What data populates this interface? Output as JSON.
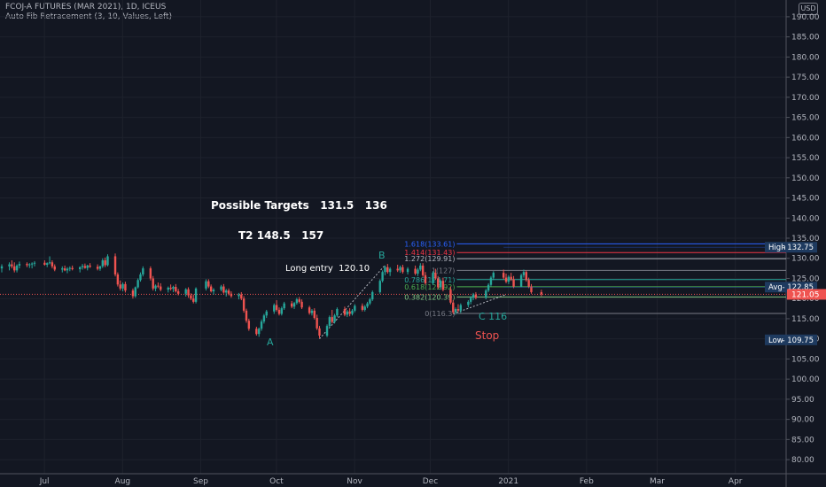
{
  "header": {
    "symbol_line": "FCOJ-A FUTURES (MAR 2021), 1D, ICEUS",
    "indicator_line": "Auto Fib Retracement (3, 10, Values, Left)",
    "currency": "USD"
  },
  "annotations": {
    "targets": "Possible Targets   131.5   136",
    "t2": "T2 148.5   157",
    "long_entry": "Long entry  120.10",
    "label_a": "A",
    "label_b": "B",
    "label_c": "C 116",
    "stop": "Stop"
  },
  "colors": {
    "background": "#131722",
    "up": "#26a69a",
    "down": "#ef5350",
    "axis_text": "#b2b5be",
    "grid": "#1e222d",
    "annotation_teal": "#26a69a",
    "annotation_red": "#ef5350"
  },
  "chart_data": {
    "type": "candlestick",
    "title": "FCOJ-A FUTURES (MAR 2021), 1D, ICEUS",
    "x_tick_labels": [
      "Jul",
      "Aug",
      "Sep",
      "Oct",
      "Nov",
      "Dec",
      "2021",
      "Feb",
      "Mar",
      "Apr"
    ],
    "x_range": [
      "2020-06-19",
      "2021-04-25"
    ],
    "y_ticks": [
      80,
      85,
      90,
      95,
      100,
      105,
      110,
      115,
      120,
      125,
      130,
      135,
      140,
      145,
      150,
      155,
      160,
      165,
      170,
      175,
      180,
      185,
      190
    ],
    "y_tick_labels": [
      "80.00",
      "85.00",
      "90.00",
      "95.00",
      "100.00",
      "105.00",
      "110.00",
      "115.00",
      "120.00",
      "125.00",
      "130.00",
      "135.00",
      "140.00",
      "145.00",
      "150.00",
      "155.00",
      "160.00",
      "165.00",
      "170.00",
      "175.00",
      "180.00",
      "185.00",
      "190.00"
    ],
    "ylim": [
      76.5,
      193.5
    ],
    "grid": true,
    "price_labels": [
      {
        "text": "High",
        "value_text": "132.75",
        "value": 132.75
      },
      {
        "text": "Avg",
        "value_text": "122.85",
        "value": 122.85
      },
      {
        "text": "",
        "value_text": "121.05",
        "value": 121.05,
        "kind": "last"
      },
      {
        "text": "Low",
        "value_text": "109.75",
        "value": 109.75
      }
    ],
    "fib_levels": [
      {
        "label": "1.618(133.61)",
        "value": 133.61,
        "color": "#2962ff"
      },
      {
        "label": "1.414(131.43)",
        "value": 131.43,
        "color": "#f23645"
      },
      {
        "label": "1.272(129.91)",
        "value": 129.91,
        "color": "#b2b5be"
      },
      {
        "label": "1(127)",
        "value": 127.0,
        "color": "#787b86"
      },
      {
        "label": "0.786(124.71)",
        "value": 124.71,
        "color": "#26a69a"
      },
      {
        "label": "0.618(122.92)",
        "value": 122.92,
        "color": "#4caf50"
      },
      {
        "label": "0.382(120.39)",
        "value": 120.39,
        "color": "#81c784"
      },
      {
        "label": "0(116.3)",
        "value": 116.3,
        "color": "#787b86"
      }
    ],
    "ohlc": [
      [
        "2020-06-19",
        127.5,
        128.5,
        126.5,
        128.0
      ],
      [
        "2020-06-22",
        128.0,
        129.0,
        127.0,
        128.5
      ],
      [
        "2020-06-23",
        128.5,
        129.5,
        127.5,
        128.0
      ],
      [
        "2020-06-24",
        128.0,
        129.0,
        126.5,
        127.0
      ],
      [
        "2020-06-25",
        127.0,
        128.5,
        126.5,
        128.2
      ],
      [
        "2020-06-26",
        128.2,
        129.2,
        127.5,
        128.6
      ],
      [
        "2020-06-29",
        128.6,
        129.0,
        127.8,
        128.3
      ],
      [
        "2020-06-30",
        128.3,
        128.8,
        127.6,
        128.5
      ],
      [
        "2020-07-01",
        128.5,
        129.0,
        127.5,
        128.7
      ],
      [
        "2020-07-02",
        128.7,
        129.3,
        128.0,
        128.9
      ],
      [
        "2020-07-06",
        128.9,
        129.5,
        128.2,
        128.4
      ],
      [
        "2020-07-07",
        128.4,
        129.0,
        127.8,
        128.8
      ],
      [
        "2020-07-08",
        128.8,
        130.5,
        128.5,
        129.0
      ],
      [
        "2020-07-09",
        129.0,
        129.5,
        127.5,
        128.0
      ],
      [
        "2020-07-10",
        128.0,
        128.5,
        126.8,
        127.2
      ],
      [
        "2020-07-13",
        127.2,
        128.0,
        126.5,
        127.5
      ],
      [
        "2020-07-14",
        127.5,
        128.2,
        126.8,
        127.0
      ],
      [
        "2020-07-15",
        127.0,
        127.8,
        126.3,
        127.4
      ],
      [
        "2020-07-16",
        127.4,
        128.0,
        126.8,
        127.6
      ],
      [
        "2020-07-17",
        127.6,
        128.2,
        127.0,
        127.3
      ],
      [
        "2020-07-20",
        127.3,
        128.0,
        126.5,
        127.8
      ],
      [
        "2020-07-21",
        127.8,
        128.6,
        127.2,
        128.1
      ],
      [
        "2020-07-22",
        128.1,
        128.7,
        127.4,
        127.6
      ],
      [
        "2020-07-23",
        127.6,
        128.4,
        127.0,
        128.2
      ],
      [
        "2020-07-24",
        128.2,
        128.8,
        127.6,
        127.9
      ],
      [
        "2020-07-27",
        127.9,
        128.5,
        127.0,
        127.4
      ],
      [
        "2020-07-28",
        127.4,
        128.2,
        126.9,
        128.0
      ],
      [
        "2020-07-29",
        128.0,
        130.0,
        127.6,
        129.5
      ],
      [
        "2020-07-30",
        129.5,
        130.2,
        127.8,
        128.3
      ],
      [
        "2020-07-31",
        128.3,
        131.0,
        128.0,
        130.5
      ],
      [
        "2020-08-03",
        130.5,
        131.2,
        125.5,
        126.0
      ],
      [
        "2020-08-04",
        126.0,
        126.5,
        123.0,
        123.5
      ],
      [
        "2020-08-05",
        123.5,
        124.5,
        122.0,
        122.5
      ],
      [
        "2020-08-06",
        122.5,
        124.0,
        121.8,
        123.6
      ],
      [
        "2020-08-07",
        123.6,
        124.2,
        121.5,
        122.0
      ],
      [
        "2020-08-10",
        122.0,
        122.5,
        120.0,
        120.6
      ],
      [
        "2020-08-11",
        120.6,
        123.0,
        120.2,
        122.8
      ],
      [
        "2020-08-12",
        122.8,
        125.0,
        122.5,
        124.6
      ],
      [
        "2020-08-13",
        124.6,
        126.5,
        124.2,
        126.0
      ],
      [
        "2020-08-14",
        126.0,
        128.0,
        125.5,
        127.5
      ],
      [
        "2020-08-17",
        127.5,
        128.0,
        124.5,
        125.0
      ],
      [
        "2020-08-18",
        125.0,
        125.6,
        122.0,
        122.5
      ],
      [
        "2020-08-19",
        122.5,
        123.5,
        121.8,
        123.2
      ],
      [
        "2020-08-20",
        123.2,
        124.0,
        122.6,
        123.0
      ],
      [
        "2020-08-21",
        123.0,
        123.8,
        121.8,
        122.2
      ],
      [
        "2020-08-24",
        122.2,
        123.0,
        121.5,
        122.7
      ],
      [
        "2020-08-25",
        122.7,
        123.5,
        122.0,
        122.4
      ],
      [
        "2020-08-26",
        122.4,
        123.2,
        121.6,
        122.9
      ],
      [
        "2020-08-27",
        122.9,
        123.6,
        121.5,
        121.8
      ],
      [
        "2020-08-28",
        121.8,
        122.4,
        120.8,
        121.2
      ],
      [
        "2020-08-31",
        121.2,
        122.6,
        120.5,
        122.3
      ],
      [
        "2020-09-01",
        122.3,
        122.8,
        120.2,
        120.8
      ],
      [
        "2020-09-02",
        120.8,
        121.3,
        119.6,
        120.0
      ],
      [
        "2020-09-03",
        120.0,
        121.0,
        118.8,
        119.2
      ],
      [
        "2020-09-04",
        119.2,
        122.8,
        118.8,
        122.5
      ],
      [
        "2020-09-08",
        122.5,
        124.8,
        122.0,
        124.3
      ],
      [
        "2020-09-09",
        124.3,
        124.8,
        122.6,
        123.0
      ],
      [
        "2020-09-10",
        123.0,
        123.5,
        121.5,
        121.8
      ],
      [
        "2020-09-11",
        121.8,
        122.6,
        121.0,
        122.2
      ],
      [
        "2020-09-14",
        122.2,
        123.4,
        121.8,
        123.0
      ],
      [
        "2020-09-15",
        123.0,
        123.6,
        121.2,
        121.5
      ],
      [
        "2020-09-16",
        121.5,
        122.4,
        120.5,
        122.0
      ],
      [
        "2020-09-17",
        122.0,
        122.5,
        120.8,
        121.2
      ],
      [
        "2020-09-18",
        121.2,
        121.8,
        120.2,
        120.6
      ],
      [
        "2020-09-21",
        120.6,
        121.4,
        119.8,
        121.0
      ],
      [
        "2020-09-22",
        121.0,
        121.6,
        119.6,
        120.0
      ],
      [
        "2020-09-23",
        120.0,
        120.6,
        116.5,
        117.0
      ],
      [
        "2020-09-24",
        117.0,
        117.5,
        114.0,
        114.5
      ],
      [
        "2020-09-25",
        114.5,
        115.0,
        112.0,
        112.5
      ],
      [
        "2020-09-28",
        112.5,
        113.0,
        110.8,
        111.2
      ],
      [
        "2020-09-29",
        111.2,
        112.8,
        110.5,
        112.5
      ],
      [
        "2020-09-30",
        112.5,
        114.8,
        112.0,
        114.3
      ],
      [
        "2020-10-01",
        114.3,
        116.2,
        113.8,
        115.8
      ],
      [
        "2020-10-02",
        115.8,
        117.2,
        115.2,
        116.8
      ],
      [
        "2020-10-05",
        116.8,
        118.8,
        116.2,
        118.4
      ],
      [
        "2020-10-06",
        118.4,
        119.6,
        116.8,
        117.2
      ],
      [
        "2020-10-07",
        117.2,
        117.8,
        115.8,
        116.2
      ],
      [
        "2020-10-08",
        116.2,
        118.0,
        115.8,
        117.6
      ],
      [
        "2020-10-09",
        117.6,
        119.2,
        117.2,
        118.8
      ],
      [
        "2020-10-12",
        118.8,
        119.4,
        117.6,
        118.0
      ],
      [
        "2020-10-13",
        118.0,
        119.2,
        117.4,
        118.9
      ],
      [
        "2020-10-14",
        118.9,
        120.2,
        118.5,
        119.8
      ],
      [
        "2020-10-15",
        119.8,
        120.4,
        118.8,
        119.2
      ],
      [
        "2020-10-16",
        119.2,
        119.8,
        117.4,
        117.8
      ],
      [
        "2020-10-19",
        117.8,
        118.2,
        116.0,
        116.4
      ],
      [
        "2020-10-20",
        116.4,
        117.4,
        115.8,
        117.0
      ],
      [
        "2020-10-21",
        117.0,
        117.6,
        114.8,
        115.2
      ],
      [
        "2020-10-22",
        115.2,
        116.0,
        112.2,
        112.6
      ],
      [
        "2020-10-23",
        112.6,
        113.2,
        110.2,
        110.8
      ],
      [
        "2020-10-26",
        110.8,
        113.6,
        110.4,
        113.2
      ],
      [
        "2020-10-27",
        113.2,
        115.8,
        112.8,
        115.4
      ],
      [
        "2020-10-28",
        115.4,
        117.2,
        113.8,
        114.2
      ],
      [
        "2020-10-29",
        114.2,
        116.2,
        113.8,
        115.8
      ],
      [
        "2020-10-30",
        115.8,
        117.8,
        115.4,
        117.4
      ],
      [
        "2020-11-02",
        117.4,
        118.0,
        115.6,
        116.0
      ],
      [
        "2020-11-03",
        116.0,
        117.2,
        115.4,
        116.8
      ],
      [
        "2020-11-04",
        116.8,
        117.6,
        115.6,
        116.2
      ],
      [
        "2020-11-05",
        116.2,
        117.4,
        115.8,
        117.0
      ],
      [
        "2020-11-06",
        117.0,
        118.6,
        116.6,
        118.2
      ],
      [
        "2020-11-09",
        118.2,
        118.8,
        116.8,
        117.2
      ],
      [
        "2020-11-10",
        117.2,
        118.4,
        116.8,
        118.0
      ],
      [
        "2020-11-11",
        118.0,
        119.2,
        117.6,
        118.8
      ],
      [
        "2020-11-12",
        118.8,
        120.2,
        118.4,
        119.8
      ],
      [
        "2020-11-13",
        119.8,
        122.0,
        119.4,
        121.6
      ],
      [
        "2020-11-16",
        121.6,
        124.8,
        121.2,
        124.4
      ],
      [
        "2020-11-17",
        124.4,
        127.0,
        124.0,
        126.6
      ],
      [
        "2020-11-18",
        126.6,
        128.2,
        125.8,
        127.8
      ],
      [
        "2020-11-19",
        127.8,
        128.6,
        126.2,
        126.6
      ],
      [
        "2020-11-20",
        126.6,
        127.8,
        125.6,
        127.4
      ],
      [
        "2020-11-23",
        127.4,
        128.4,
        126.6,
        127.0
      ],
      [
        "2020-11-24",
        127.0,
        128.2,
        126.4,
        127.8
      ],
      [
        "2020-11-25",
        127.8,
        128.4,
        126.2,
        126.6
      ],
      [
        "2020-11-27",
        126.6,
        127.8,
        126.0,
        127.4
      ],
      [
        "2020-11-30",
        127.4,
        128.2,
        125.8,
        126.2
      ],
      [
        "2020-12-01",
        126.2,
        127.6,
        125.6,
        127.2
      ],
      [
        "2020-12-02",
        127.2,
        128.8,
        126.8,
        128.2
      ],
      [
        "2020-12-03",
        128.2,
        128.8,
        125.4,
        125.8
      ],
      [
        "2020-12-04",
        125.8,
        126.6,
        123.4,
        123.8
      ],
      [
        "2020-12-07",
        123.8,
        126.8,
        123.4,
        126.4
      ],
      [
        "2020-12-08",
        126.4,
        127.4,
        124.6,
        125.0
      ],
      [
        "2020-12-09",
        125.0,
        125.6,
        122.4,
        122.8
      ],
      [
        "2020-12-10",
        122.8,
        124.8,
        122.2,
        124.4
      ],
      [
        "2020-12-11",
        124.4,
        125.2,
        121.8,
        122.2
      ],
      [
        "2020-12-14",
        122.2,
        123.0,
        118.6,
        119.0
      ],
      [
        "2020-12-15",
        119.0,
        119.6,
        116.2,
        116.6
      ],
      [
        "2020-12-16",
        116.6,
        117.8,
        116.0,
        117.4
      ],
      [
        "2020-12-17",
        117.4,
        118.6,
        116.6,
        117.0
      ],
      [
        "2020-12-18",
        117.0,
        118.8,
        116.4,
        118.4
      ],
      [
        "2020-12-21",
        118.4,
        119.6,
        117.8,
        119.2
      ],
      [
        "2020-12-22",
        119.2,
        120.6,
        118.6,
        120.2
      ],
      [
        "2020-12-23",
        120.2,
        121.4,
        119.6,
        121.0
      ],
      [
        "2020-12-24",
        121.0,
        121.6,
        119.8,
        120.2
      ],
      [
        "2020-12-28",
        120.2,
        122.4,
        119.8,
        122.0
      ],
      [
        "2020-12-29",
        122.0,
        123.8,
        121.6,
        123.4
      ],
      [
        "2020-12-30",
        123.4,
        125.6,
        123.0,
        125.2
      ],
      [
        "2020-12-31",
        125.2,
        126.8,
        124.6,
        126.4
      ],
      [
        "2021-01-04",
        126.4,
        127.2,
        124.8,
        125.2
      ],
      [
        "2021-01-05",
        125.2,
        126.2,
        123.8,
        124.2
      ],
      [
        "2021-01-06",
        124.2,
        125.8,
        123.6,
        125.4
      ],
      [
        "2021-01-07",
        125.4,
        126.4,
        124.4,
        124.8
      ],
      [
        "2021-01-08",
        124.8,
        125.6,
        122.6,
        123.0
      ],
      [
        "2021-01-11",
        123.0,
        126.2,
        122.8,
        125.8
      ],
      [
        "2021-01-12",
        125.8,
        127.2,
        125.2,
        126.6
      ],
      [
        "2021-01-13",
        126.6,
        127.0,
        124.2,
        124.6
      ],
      [
        "2021-01-14",
        124.6,
        125.2,
        122.6,
        123.0
      ],
      [
        "2021-01-15",
        123.0,
        123.6,
        121.2,
        121.6
      ],
      [
        "2021-01-19",
        121.6,
        122.2,
        120.6,
        121.05
      ]
    ]
  }
}
